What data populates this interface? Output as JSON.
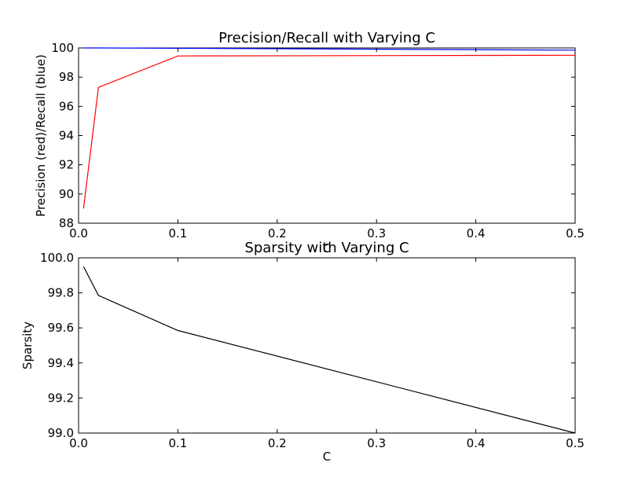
{
  "chart_data": [
    {
      "type": "line",
      "title": "Precision/Recall with Varying C",
      "xlabel": "C",
      "ylabel": "Precision (red)/Recall (blue)",
      "xlim": [
        0.0,
        0.5
      ],
      "ylim": [
        88,
        100
      ],
      "xticks": [
        "0.0",
        "0.1",
        "0.2",
        "0.3",
        "0.4",
        "0.5"
      ],
      "yticks": [
        "88",
        "90",
        "92",
        "94",
        "96",
        "98",
        "100"
      ],
      "grid": false,
      "series": [
        {
          "color": "#ff0000",
          "x": [
            0.005,
            0.02,
            0.1,
            0.5
          ],
          "y": [
            89.0,
            97.3,
            99.45,
            99.5
          ]
        },
        {
          "color": "#0000ff",
          "x": [
            0.005,
            0.02,
            0.1,
            0.5
          ],
          "y": [
            100.0,
            100.0,
            99.98,
            99.85
          ]
        }
      ]
    },
    {
      "type": "line",
      "title": "Sparsity with Varying C",
      "xlabel": "C",
      "ylabel": "Sparsity",
      "xlim": [
        0.0,
        0.5
      ],
      "ylim": [
        99.0,
        100.0
      ],
      "xticks": [
        "0.0",
        "0.1",
        "0.2",
        "0.3",
        "0.4",
        "0.5"
      ],
      "yticks": [
        "99.0",
        "99.2",
        "99.4",
        "99.6",
        "99.8",
        "100.0"
      ],
      "grid": false,
      "series": [
        {
          "color": "#000000",
          "x": [
            0.005,
            0.02,
            0.1,
            0.5
          ],
          "y": [
            99.95,
            99.785,
            99.585,
            99.0
          ]
        }
      ]
    }
  ]
}
